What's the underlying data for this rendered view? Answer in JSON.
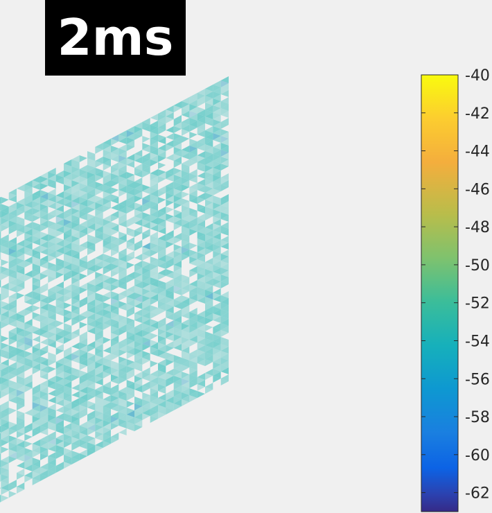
{
  "time_label": "2ms",
  "chart_data": {
    "type": "heatmap",
    "title": "2ms",
    "colormap": "parula",
    "colorbar": {
      "range": [
        -63,
        -40
      ],
      "ticks": [
        -40,
        -42,
        -44,
        -46,
        -48,
        -50,
        -52,
        -54,
        -56,
        -58,
        -60,
        -62
      ],
      "tick_labels": [
        "-40",
        "-42",
        "-44",
        "-46",
        "-48",
        "-50",
        "-52",
        "-54",
        "-56",
        "-58",
        "-60",
        "-62"
      ]
    },
    "field_value_typical": -52.5,
    "field_value_min": -56,
    "grid": false,
    "legend": "none"
  },
  "colors": {
    "background": "#f0f0f0",
    "mesh_fill": "#49c3bf",
    "mesh_dark": "#3aa9c7",
    "label_bg": "#000000",
    "label_text": "#ffffff"
  }
}
